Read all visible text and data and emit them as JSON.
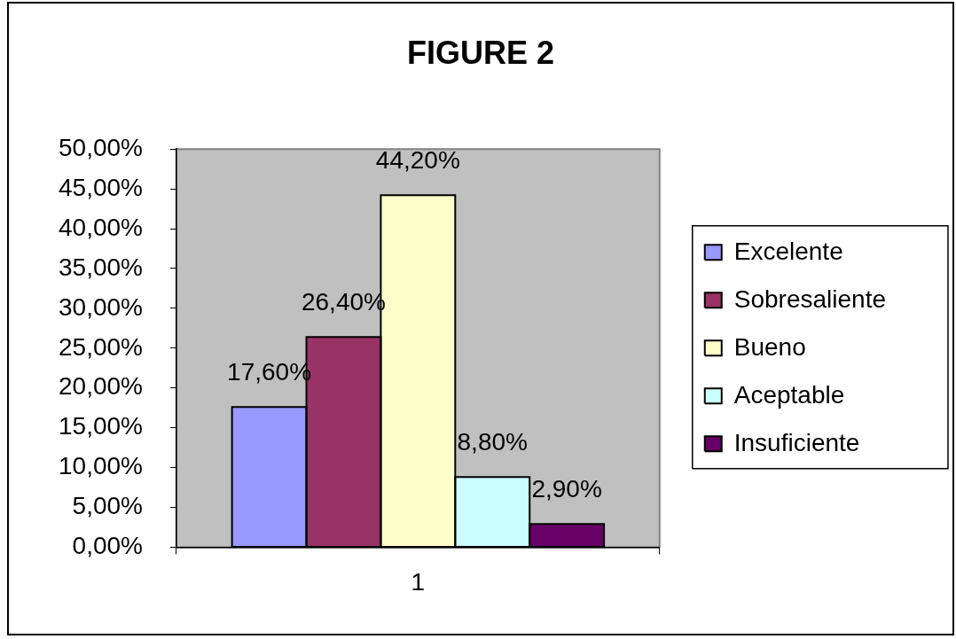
{
  "chart_data": {
    "type": "bar",
    "title": "FIGURE 2",
    "categories": [
      "1"
    ],
    "series": [
      {
        "name": "Excelente",
        "color": "#9999ff",
        "values": [
          17.6
        ],
        "value_labels": [
          "17,60%"
        ]
      },
      {
        "name": "Sobresaliente",
        "color": "#993366",
        "values": [
          26.4
        ],
        "value_labels": [
          "26,40%"
        ]
      },
      {
        "name": "Bueno",
        "color": "#ffffcc",
        "values": [
          44.2
        ],
        "value_labels": [
          "44,20%"
        ]
      },
      {
        "name": "Aceptable",
        "color": "#ccffff",
        "values": [
          8.8
        ],
        "value_labels": [
          "8,80%"
        ]
      },
      {
        "name": "Insuficiente",
        "color": "#660066",
        "values": [
          2.9
        ],
        "value_labels": [
          "2,90%"
        ]
      }
    ],
    "ylim": [
      0,
      50
    ],
    "yticks": [
      {
        "value": 0,
        "label": "0,00%"
      },
      {
        "value": 5,
        "label": "5,00%"
      },
      {
        "value": 10,
        "label": "10,00%"
      },
      {
        "value": 15,
        "label": "15,00%"
      },
      {
        "value": 20,
        "label": "20,00%"
      },
      {
        "value": 25,
        "label": "25,00%"
      },
      {
        "value": 30,
        "label": "30,00%"
      },
      {
        "value": 35,
        "label": "35,00%"
      },
      {
        "value": 40,
        "label": "40,00%"
      },
      {
        "value": 45,
        "label": "45,00%"
      },
      {
        "value": 50,
        "label": "50,00%"
      }
    ],
    "grid": false,
    "legend": "right"
  }
}
